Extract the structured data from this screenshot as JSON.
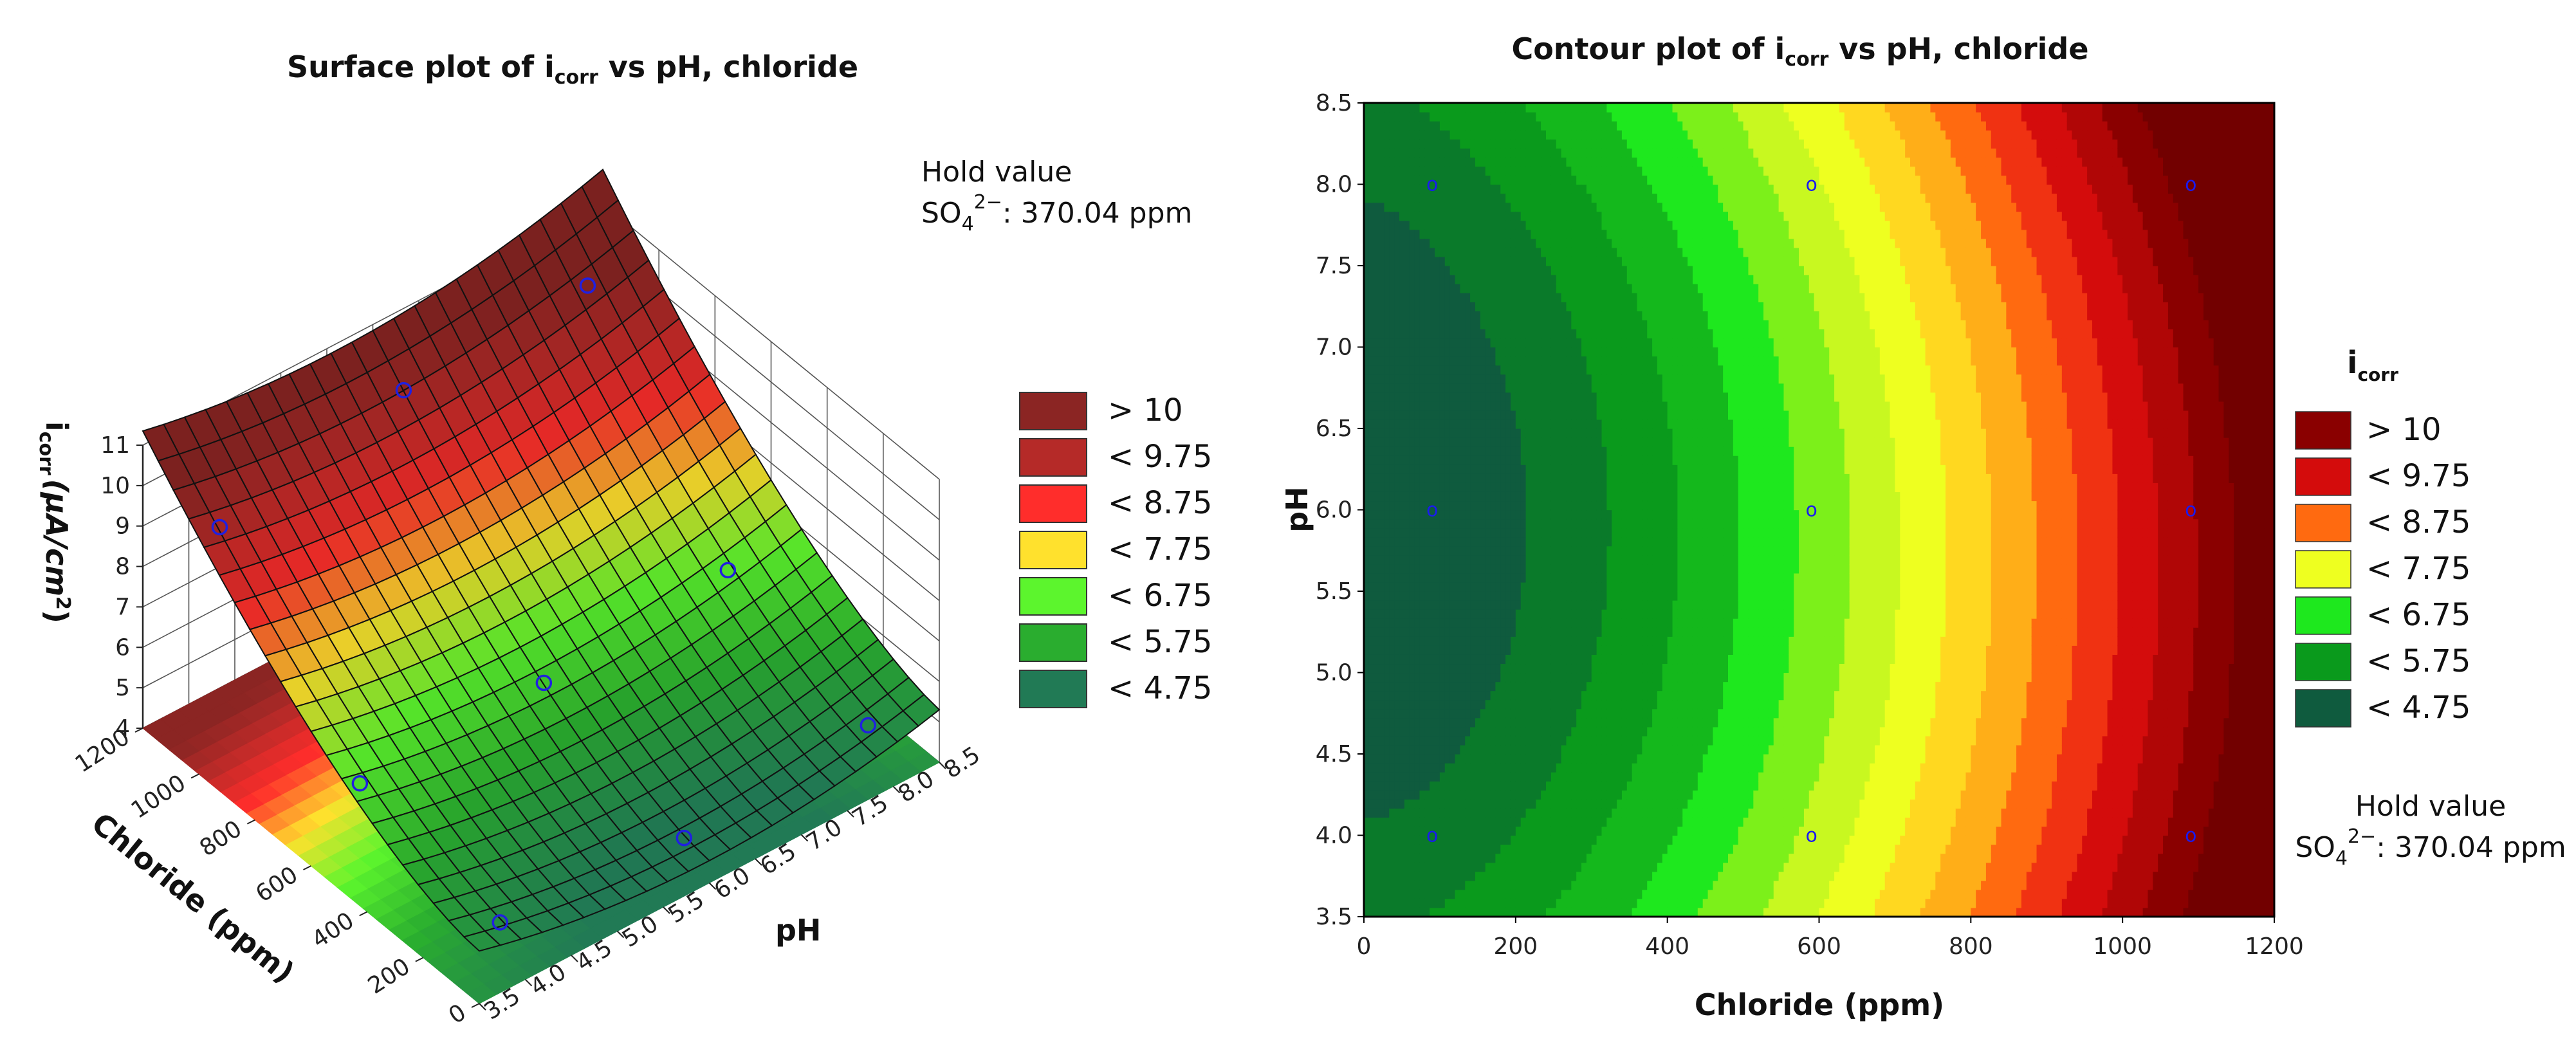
{
  "chart_data": [
    {
      "type": "surface",
      "title": "Surface plot of i",
      "title_sub": "corr",
      "title_rest": " vs pH, chloride",
      "xlabel": "pH",
      "ylabel": "Chloride (ppm)",
      "zlabel_main": "i",
      "zlabel_sub": "corr",
      "zlabel_unit": "(μA/cm",
      "zlabel_sup": "2",
      "zlabel_close": ")",
      "xlim": [
        3.5,
        8.5
      ],
      "ylim": [
        0,
        1200
      ],
      "zlim": [
        4,
        11
      ],
      "x_ticks": [
        "3.5",
        "4.0",
        "4.5",
        "5.0",
        "5.5",
        "6.0",
        "6.5",
        "7.0",
        "7.5",
        "8.0",
        "8.5"
      ],
      "y_ticks": [
        "0",
        "200",
        "400",
        "600",
        "800",
        "1000",
        "1200"
      ],
      "z_ticks": [
        "4",
        "5",
        "6",
        "7",
        "8",
        "9",
        "10",
        "11"
      ],
      "hold_label": "Hold value",
      "hold_species": "SO",
      "hold_sub": "4",
      "hold_sup": "2−",
      "hold_value": ": 370.04 ppm",
      "design_points": [
        {
          "ph": 4.0,
          "cl": 90,
          "icorr": 4.9
        },
        {
          "ph": 4.0,
          "cl": 590,
          "icorr": 5.5
        },
        {
          "ph": 4.0,
          "cl": 1090,
          "icorr": 9.0
        },
        {
          "ph": 6.0,
          "cl": 90,
          "icorr": 4.6
        },
        {
          "ph": 6.0,
          "cl": 590,
          "icorr": 5.6
        },
        {
          "ph": 6.0,
          "cl": 1090,
          "icorr": 10.0
        },
        {
          "ph": 8.0,
          "cl": 90,
          "icorr": 5.0
        },
        {
          "ph": 8.0,
          "cl": 590,
          "icorr": 6.0
        },
        {
          "ph": 8.0,
          "cl": 1090,
          "icorr": 10.2
        }
      ],
      "legend": [
        {
          "label": "> 10",
          "color": "#8b2523"
        },
        {
          "label": "< 9.75",
          "color": "#b52a28"
        },
        {
          "label": "< 8.75",
          "color": "#ff2d2b"
        },
        {
          "label": "< 7.75",
          "color": "#ffe12d"
        },
        {
          "label": "< 6.75",
          "color": "#5cf52d"
        },
        {
          "label": "< 5.75",
          "color": "#2aad2f"
        },
        {
          "label": "< 4.75",
          "color": "#217a55"
        }
      ]
    },
    {
      "type": "contour",
      "title": "Contour plot of i",
      "title_sub": "corr",
      "title_rest": " vs pH, chloride",
      "xlabel": "Chloride (ppm)",
      "ylabel": "pH",
      "xlim": [
        0,
        1200
      ],
      "ylim": [
        3.5,
        8.5
      ],
      "x_ticks": [
        "0",
        "200",
        "400",
        "600",
        "800",
        "1000",
        "1200"
      ],
      "y_ticks": [
        "3.5",
        "4.0",
        "4.5",
        "5.0",
        "5.5",
        "6.0",
        "6.5",
        "7.0",
        "7.5",
        "8.0",
        "8.5"
      ],
      "legend_title": "i",
      "legend_title_sub": "corr",
      "hold_label": "Hold value",
      "hold_species": "SO",
      "hold_sub": "4",
      "hold_sup": "2−",
      "hold_value": ": 370.04 ppm",
      "design_points": [
        {
          "cl": 90,
          "ph": 4.0
        },
        {
          "cl": 590,
          "ph": 4.0
        },
        {
          "cl": 1090,
          "ph": 4.0
        },
        {
          "cl": 90,
          "ph": 6.0
        },
        {
          "cl": 590,
          "ph": 6.0
        },
        {
          "cl": 1090,
          "ph": 6.0
        },
        {
          "cl": 90,
          "ph": 8.0
        },
        {
          "cl": 590,
          "ph": 8.0
        },
        {
          "cl": 1090,
          "ph": 8.0
        }
      ],
      "legend": [
        {
          "label": "> 10",
          "color": "#8a0000"
        },
        {
          "label": "< 9.75",
          "color": "#d40c0c"
        },
        {
          "label": "< 8.75",
          "color": "#ff6a10"
        },
        {
          "label": "< 7.75",
          "color": "#eeff20"
        },
        {
          "label": "< 6.75",
          "color": "#1ee81e"
        },
        {
          "label": "< 5.75",
          "color": "#0a9a1c"
        },
        {
          "label": "< 4.75",
          "color": "#0f5b3e"
        }
      ],
      "point_marker": "o"
    }
  ]
}
